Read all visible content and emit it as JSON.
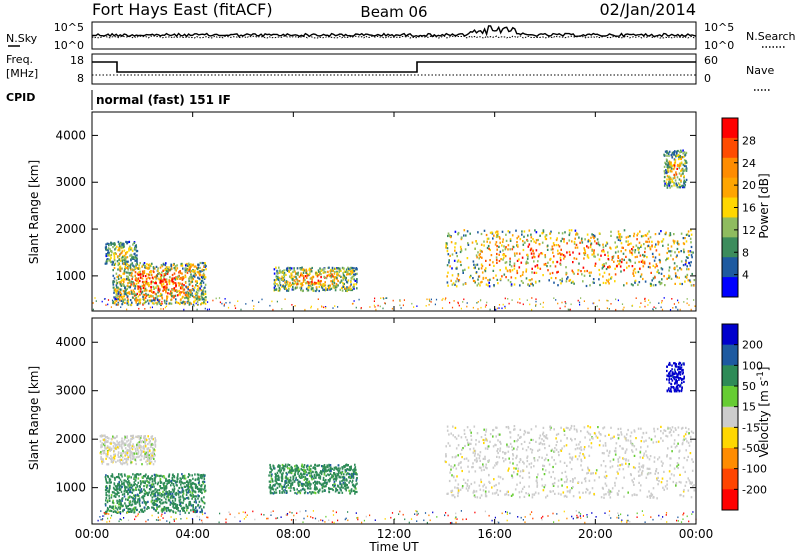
{
  "header": {
    "station": "Fort Hays East (fitACF)",
    "beam": "Beam 06",
    "date": "02/Jan/2014"
  },
  "noise_panel": {
    "left_label": "N.Sky",
    "right_label": "N.Search",
    "left_ticks": [
      "10^5",
      "10^0"
    ],
    "right_ticks": [
      "10^5",
      "10^0"
    ]
  },
  "freq_panel": {
    "left_label_1": "Freq.",
    "left_label_2": "[MHz]",
    "right_label": "Nave",
    "left_ticks": [
      "18",
      "8"
    ],
    "right_ticks": [
      "60",
      "0"
    ]
  },
  "cpid": {
    "label": "CPID",
    "text": "normal (fast) 151 IF"
  },
  "x_axis": {
    "label": "Time UT",
    "ticks": [
      "00:00",
      "04:00",
      "08:00",
      "12:00",
      "16:00",
      "20:00",
      "00:00"
    ]
  },
  "chart_data": [
    {
      "type": "heatmap",
      "name": "power",
      "ylabel": "Slant Range [km]",
      "yticks": [
        "1000",
        "2000",
        "3000",
        "4000"
      ],
      "ylim": [
        250,
        4500
      ],
      "xlim": [
        0,
        24
      ],
      "colorbar": {
        "label": "Power [dB]",
        "ticks": [
          "28",
          "24",
          "20",
          "16",
          "12",
          "8",
          "4"
        ],
        "colors": [
          "#ff0000",
          "#ff4b00",
          "#ff8c00",
          "#ffa500",
          "#ffd700",
          "#8fbc5f",
          "#3c8c5c",
          "#1e5aa0",
          "#0000ff"
        ]
      },
      "regions": [
        {
          "t": [
            0.5,
            1.8
          ],
          "r": [
            1250,
            1750
          ],
          "level": 2
        },
        {
          "t": [
            0.8,
            4.5
          ],
          "r": [
            400,
            1300
          ],
          "level": 5
        },
        {
          "t": [
            7.2,
            10.5
          ],
          "r": [
            700,
            1200
          ],
          "level": 4
        },
        {
          "t": [
            14.0,
            23.9
          ],
          "r": [
            800,
            2000
          ],
          "level": 5
        },
        {
          "t": [
            22.7,
            23.6
          ],
          "r": [
            2900,
            3700
          ],
          "level": 3
        }
      ]
    },
    {
      "type": "heatmap",
      "name": "velocity",
      "ylabel": "Slant Range [km]",
      "yticks": [
        "1000",
        "2000",
        "3000",
        "4000"
      ],
      "ylim": [
        250,
        4500
      ],
      "xlim": [
        0,
        24
      ],
      "colorbar": {
        "label": "Velocity [m s^-1]",
        "ticks": [
          "200",
          "100",
          "50",
          "15",
          "-15",
          "-50",
          "-100",
          "-200"
        ],
        "colors": [
          "#0000cc",
          "#1e5aa0",
          "#2e8b57",
          "#66cc33",
          "#cccccc",
          "#ffd700",
          "#ff8c00",
          "#ff4500",
          "#ff0000"
        ]
      },
      "regions": [
        {
          "t": [
            0.5,
            4.5
          ],
          "r": [
            500,
            1300
          ],
          "vel": "50"
        },
        {
          "t": [
            0.3,
            2.5
          ],
          "r": [
            1500,
            2100
          ],
          "vel": "-15"
        },
        {
          "t": [
            7.0,
            10.5
          ],
          "r": [
            900,
            1500
          ],
          "vel": "50"
        },
        {
          "t": [
            14.0,
            23.9
          ],
          "r": [
            800,
            2300
          ],
          "vel": "-15"
        },
        {
          "t": [
            22.8,
            23.5
          ],
          "r": [
            3000,
            3600
          ],
          "vel": "200"
        }
      ]
    }
  ]
}
